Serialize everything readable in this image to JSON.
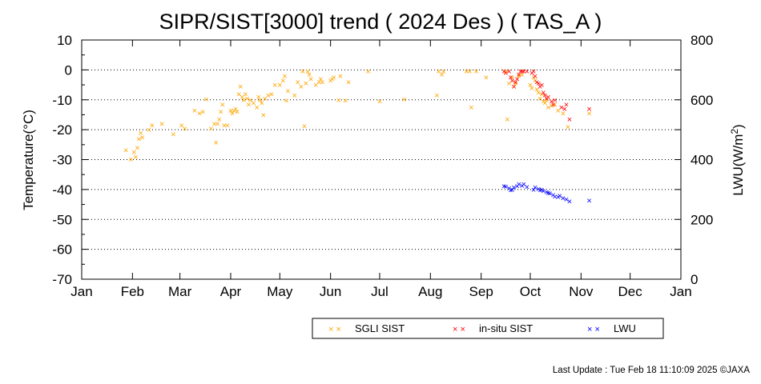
{
  "chart_data": {
    "type": "scatter",
    "title": "SIPR/SIST[3000] trend ( 2024 Des ) ( TAS_A )",
    "ylabel": "Temperature(°C)",
    "y2label": {
      "base": "LWU(W/m",
      "sup": "2",
      "end": ")"
    },
    "ylim": [
      -70,
      10
    ],
    "y2lim": [
      0,
      800
    ],
    "yticks": [
      "10",
      "0",
      "-10",
      "-20",
      "-30",
      "-40",
      "-50",
      "-60",
      "-70"
    ],
    "y2ticks": [
      "800",
      "600",
      "400",
      "200",
      "0"
    ],
    "xticks": [
      "Jan",
      "Feb",
      "Mar",
      "Apr",
      "May",
      "Jun",
      "Jul",
      "Aug",
      "Sep",
      "Oct",
      "Nov",
      "Dec",
      "Jan"
    ],
    "grid": "horizontal dotted",
    "legend_position": "bottom-right",
    "marker": "×",
    "series": [
      {
        "name": "SGLI SIST",
        "color": "#ffa500",
        "axis": "left",
        "points": [
          [
            "2024-01-28",
            -26.8
          ],
          [
            "2024-01-31",
            -29.8
          ],
          [
            "2024-02-02",
            -27.5
          ],
          [
            "2024-02-03",
            -29.0
          ],
          [
            "2024-02-04",
            -26.0
          ],
          [
            "2024-02-05",
            -23.0
          ],
          [
            "2024-02-06",
            -21.0
          ],
          [
            "2024-02-07",
            -22.5
          ],
          [
            "2024-02-11",
            -20.0
          ],
          [
            "2024-02-13",
            -18.5
          ],
          [
            "2024-02-19",
            -18.0
          ],
          [
            "2024-02-26",
            -21.5
          ],
          [
            "2024-03-02",
            -18.5
          ],
          [
            "2024-03-04",
            -19.5
          ],
          [
            "2024-03-10",
            -13.5
          ],
          [
            "2024-03-13",
            -14.5
          ],
          [
            "2024-03-15",
            -14.0
          ],
          [
            "2024-03-17",
            -9.8
          ],
          [
            "2024-03-20",
            -19.5
          ],
          [
            "2024-03-22",
            -18.0
          ],
          [
            "2024-03-23",
            -24.2
          ],
          [
            "2024-03-24",
            -18.0
          ],
          [
            "2024-03-25",
            -16.5
          ],
          [
            "2024-03-26",
            -14.0
          ],
          [
            "2024-03-27",
            -11.5
          ],
          [
            "2024-03-28",
            -18.5
          ],
          [
            "2024-03-30",
            -18.5
          ],
          [
            "2024-04-01",
            -13.5
          ],
          [
            "2024-04-02",
            -14.5
          ],
          [
            "2024-04-03",
            -13.5
          ],
          [
            "2024-04-04",
            -13.0
          ],
          [
            "2024-04-05",
            -14.0
          ],
          [
            "2024-04-06",
            -8.0
          ],
          [
            "2024-04-07",
            -5.5
          ],
          [
            "2024-04-08",
            -9.0
          ],
          [
            "2024-04-09",
            -10.0
          ],
          [
            "2024-04-10",
            -8.0
          ],
          [
            "2024-04-11",
            -9.5
          ],
          [
            "2024-04-12",
            -11.5
          ],
          [
            "2024-04-13",
            -10.0
          ],
          [
            "2024-04-15",
            -11.0
          ],
          [
            "2024-04-17",
            -12.5
          ],
          [
            "2024-04-18",
            -9.0
          ],
          [
            "2024-04-19",
            -10.0
          ],
          [
            "2024-04-20",
            -11.0
          ],
          [
            "2024-04-21",
            -15.0
          ],
          [
            "2024-04-22",
            -9.5
          ],
          [
            "2024-04-24",
            -8.5
          ],
          [
            "2024-04-26",
            -8.0
          ],
          [
            "2024-04-28",
            -5.0
          ],
          [
            "2024-05-01",
            -5.0
          ],
          [
            "2024-05-03",
            -3.5
          ],
          [
            "2024-05-04",
            -2.0
          ],
          [
            "2024-05-05",
            -10.2
          ],
          [
            "2024-05-06",
            -7.0
          ],
          [
            "2024-05-10",
            -8.5
          ],
          [
            "2024-05-12",
            -4.0
          ],
          [
            "2024-05-14",
            -5.5
          ],
          [
            "2024-05-15",
            -0.5
          ],
          [
            "2024-05-16",
            -18.8
          ],
          [
            "2024-05-17",
            -4.5
          ],
          [
            "2024-05-18",
            -0.5
          ],
          [
            "2024-05-19",
            -1.5
          ],
          [
            "2024-05-20",
            -3.0
          ],
          [
            "2024-05-23",
            -5.0
          ],
          [
            "2024-05-25",
            -4.0
          ],
          [
            "2024-05-26",
            -3.0
          ],
          [
            "2024-05-27",
            -4.0
          ],
          [
            "2024-06-01",
            -3.5
          ],
          [
            "2024-06-02",
            -3.0
          ],
          [
            "2024-06-03",
            -2.5
          ],
          [
            "2024-06-06",
            -10.0
          ],
          [
            "2024-06-07",
            -2.0
          ],
          [
            "2024-06-10",
            -10.2
          ],
          [
            "2024-06-12",
            -4.0
          ],
          [
            "2024-06-24",
            -0.5
          ],
          [
            "2024-07-01",
            -10.5
          ],
          [
            "2024-07-16",
            -9.8
          ],
          [
            "2024-08-05",
            -8.5
          ],
          [
            "2024-08-06",
            -0.5
          ],
          [
            "2024-08-08",
            -1.5
          ],
          [
            "2024-08-09",
            -0.5
          ],
          [
            "2024-08-23",
            -0.5
          ],
          [
            "2024-08-25",
            -0.5
          ],
          [
            "2024-08-26",
            -12.5
          ],
          [
            "2024-08-29",
            -0.5
          ],
          [
            "2024-09-04",
            -2.5
          ],
          [
            "2024-09-16",
            -0.5
          ],
          [
            "2024-09-17",
            -16.5
          ],
          [
            "2024-09-18",
            -4.5
          ],
          [
            "2024-09-20",
            -2.5
          ],
          [
            "2024-09-21",
            -5.5
          ],
          [
            "2024-09-22",
            -4.5
          ],
          [
            "2024-09-24",
            -2.0
          ],
          [
            "2024-09-26",
            -1.5
          ],
          [
            "2024-10-01",
            -5.0
          ],
          [
            "2024-10-02",
            -6.0
          ],
          [
            "2024-10-03",
            -2.5
          ],
          [
            "2024-10-04",
            -3.5
          ],
          [
            "2024-10-05",
            -6.5
          ],
          [
            "2024-10-06",
            -7.5
          ],
          [
            "2024-10-07",
            -9.5
          ],
          [
            "2024-10-08",
            -8.0
          ],
          [
            "2024-10-09",
            -10.5
          ],
          [
            "2024-10-10",
            -11.0
          ],
          [
            "2024-10-11",
            -10.0
          ],
          [
            "2024-10-12",
            -12.5
          ],
          [
            "2024-10-14",
            -12.0
          ],
          [
            "2024-10-16",
            -11.5
          ],
          [
            "2024-10-18",
            -13.5
          ],
          [
            "2024-10-21",
            -14.5
          ],
          [
            "2024-10-24",
            -19.0
          ],
          [
            "2024-11-06",
            -14.5
          ]
        ]
      },
      {
        "name": "in-situ SIST",
        "color": "#ff0000",
        "axis": "left",
        "points": [
          [
            "2024-09-15",
            -0.5
          ],
          [
            "2024-09-16",
            -1.0
          ],
          [
            "2024-09-18",
            -0.5
          ],
          [
            "2024-09-19",
            -2.5
          ],
          [
            "2024-09-20",
            -3.5
          ],
          [
            "2024-09-21",
            -5.5
          ],
          [
            "2024-09-22",
            -4.0
          ],
          [
            "2024-09-23",
            -3.0
          ],
          [
            "2024-09-24",
            -1.5
          ],
          [
            "2024-09-25",
            -0.5
          ],
          [
            "2024-09-26",
            -0.5
          ],
          [
            "2024-09-27",
            -0.5
          ],
          [
            "2024-09-29",
            -0.5
          ],
          [
            "2024-10-02",
            -1.0
          ],
          [
            "2024-10-03",
            -0.5
          ],
          [
            "2024-10-04",
            -2.0
          ],
          [
            "2024-10-05",
            -4.0
          ],
          [
            "2024-10-06",
            -4.5
          ],
          [
            "2024-10-07",
            -5.5
          ],
          [
            "2024-10-08",
            -5.0
          ],
          [
            "2024-10-09",
            -7.5
          ],
          [
            "2024-10-10",
            -8.5
          ],
          [
            "2024-10-11",
            -9.5
          ],
          [
            "2024-10-12",
            -9.0
          ],
          [
            "2024-10-14",
            -10.5
          ],
          [
            "2024-10-15",
            -11.5
          ],
          [
            "2024-10-16",
            -10.0
          ],
          [
            "2024-10-20",
            -12.5
          ],
          [
            "2024-10-22",
            -13.0
          ],
          [
            "2024-10-23",
            -11.5
          ],
          [
            "2024-10-25",
            -16.5
          ],
          [
            "2024-11-06",
            -13.0
          ]
        ]
      },
      {
        "name": "LWU",
        "color": "#0000ff",
        "axis": "right",
        "points": [
          [
            "2024-09-15",
            312
          ],
          [
            "2024-09-16",
            310
          ],
          [
            "2024-09-18",
            305
          ],
          [
            "2024-09-19",
            298
          ],
          [
            "2024-09-20",
            300
          ],
          [
            "2024-09-21",
            308
          ],
          [
            "2024-09-23",
            312
          ],
          [
            "2024-09-24",
            318
          ],
          [
            "2024-09-26",
            313
          ],
          [
            "2024-09-27",
            318
          ],
          [
            "2024-09-29",
            309
          ],
          [
            "2024-10-03",
            300
          ],
          [
            "2024-10-04",
            308
          ],
          [
            "2024-10-06",
            303
          ],
          [
            "2024-10-07",
            298
          ],
          [
            "2024-10-08",
            300
          ],
          [
            "2024-10-09",
            295
          ],
          [
            "2024-10-11",
            292
          ],
          [
            "2024-10-12",
            289
          ],
          [
            "2024-10-13",
            287
          ],
          [
            "2024-10-15",
            282
          ],
          [
            "2024-10-16",
            277
          ],
          [
            "2024-10-18",
            276
          ],
          [
            "2024-10-19",
            279
          ],
          [
            "2024-10-21",
            271
          ],
          [
            "2024-10-23",
            267
          ],
          [
            "2024-10-25",
            261
          ],
          [
            "2024-11-06",
            264
          ]
        ]
      }
    ]
  },
  "footer": "Last Update : Tue Feb 18 11:10:09 2025  ©JAXA"
}
